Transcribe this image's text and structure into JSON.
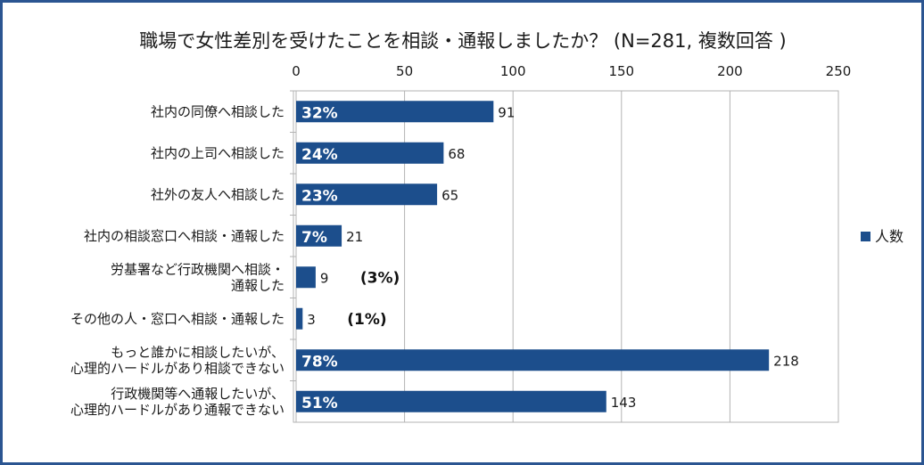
{
  "chart_data": {
    "type": "bar",
    "orientation": "horizontal",
    "title": "職場で女性差別を受けたことを相談・通報しましたか？ (N=281, 複数回答 )",
    "categories": [
      [
        "社内の同僚へ相談した"
      ],
      [
        "社内の上司へ相談した"
      ],
      [
        "社外の友人へ相談した"
      ],
      [
        "社内の相談窓口へ相談・通報した"
      ],
      [
        "労基署など行政機関へ相談・",
        "通報した"
      ],
      [
        "その他の人・窓口へ相談・通報した"
      ],
      [
        "もっと誰かに相談したいが、",
        "心理的ハードルがあり相談できない"
      ],
      [
        "行政機関等へ通報したいが、",
        "心理的ハードルがあり通報できない"
      ]
    ],
    "series": [
      {
        "name": "人数",
        "color": "#1c4e8c",
        "values": [
          91,
          68,
          65,
          21,
          9,
          3,
          218,
          143
        ],
        "percent_labels": [
          "32%",
          "24%",
          "23%",
          "7%",
          "(3%)",
          "(1%)",
          "78%",
          "51%"
        ]
      }
    ],
    "xlim": [
      0,
      250
    ],
    "xticks": [
      0,
      50,
      100,
      150,
      200,
      250
    ],
    "x_axis_position": "top",
    "grid": true,
    "legend": "right"
  }
}
